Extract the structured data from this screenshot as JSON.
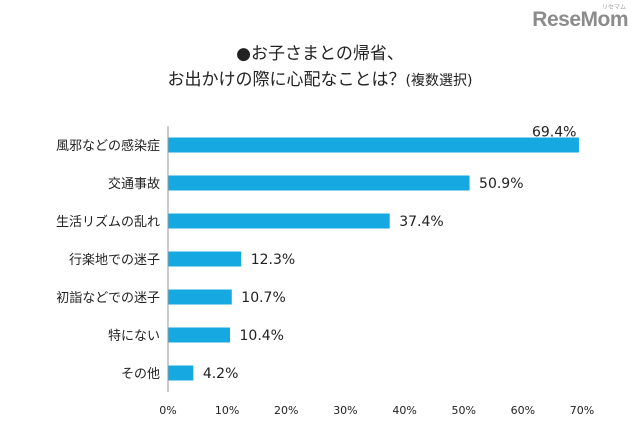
{
  "logo": {
    "text": "ReseMom",
    "kana": "リセマム"
  },
  "title": {
    "line1": "●お子さまとの帰省、",
    "line2_main": "お出かけの際に心配なことは？",
    "line2_small": "(複数選択)"
  },
  "colors": {
    "bar": "#16a9e1",
    "axis": "#999999",
    "text": "#222222"
  },
  "chart_data": {
    "type": "bar",
    "orientation": "horizontal",
    "title": "●お子さまとの帰省、お出かけの際に心配なことは？(複数選択)",
    "categories": [
      "風邪などの感染症",
      "交通事故",
      "生活リズムの乱れ",
      "行楽地での迷子",
      "初詣などでの迷子",
      "特にない",
      "その他"
    ],
    "values": [
      69.4,
      50.9,
      37.4,
      12.3,
      10.7,
      10.4,
      4.2
    ],
    "value_labels": [
      "69.4%",
      "50.9%",
      "37.4%",
      "12.3%",
      "10.7%",
      "10.4%",
      "4.2%"
    ],
    "xlim": [
      0,
      70
    ],
    "xticks": [
      0,
      10,
      20,
      30,
      40,
      50,
      60,
      70
    ],
    "xtick_labels": [
      "0%",
      "10%",
      "20%",
      "30%",
      "40%",
      "50%",
      "60%",
      "70%"
    ],
    "grid": false,
    "legend": "none"
  }
}
